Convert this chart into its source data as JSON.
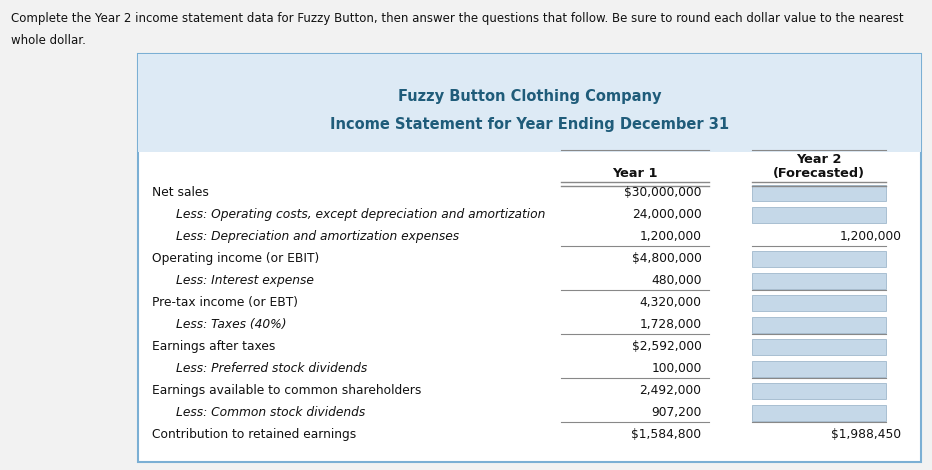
{
  "title_line1": "Fuzzy Button Clothing Company",
  "title_line2": "Income Statement for Year Ending December 31",
  "header_bg": "#ddeaf5",
  "table_border_color": "#7bafd4",
  "instruction_line1": "Complete the Year 2 income statement data for Fuzzy Button, then answer the questions that follow. Be sure to round each dollar value to the nearest",
  "instruction_line2": "whole dollar.",
  "rows": [
    {
      "label": "Net sales",
      "indent": false,
      "year1": "$30,000,000",
      "year2": "",
      "separator_below": false
    },
    {
      "label": "Less: Operating costs, except depreciation and amortization",
      "indent": true,
      "year1": "24,000,000",
      "year2": "",
      "separator_below": false
    },
    {
      "label": "Less: Depreciation and amortization expenses",
      "indent": true,
      "year1": "1,200,000",
      "year2": "1,200,000",
      "separator_below": true
    },
    {
      "label": "Operating income (or EBIT)",
      "indent": false,
      "year1": "$4,800,000",
      "year2": "",
      "separator_below": false
    },
    {
      "label": "Less: Interest expense",
      "indent": true,
      "year1": "480,000",
      "year2": "",
      "separator_below": true
    },
    {
      "label": "Pre-tax income (or EBT)",
      "indent": false,
      "year1": "4,320,000",
      "year2": "",
      "separator_below": false
    },
    {
      "label": "Less: Taxes (40%)",
      "indent": true,
      "year1": "1,728,000",
      "year2": "",
      "separator_below": true
    },
    {
      "label": "Earnings after taxes",
      "indent": false,
      "year1": "$2,592,000",
      "year2": "",
      "separator_below": false
    },
    {
      "label": "Less: Preferred stock dividends",
      "indent": true,
      "year1": "100,000",
      "year2": "",
      "separator_below": true
    },
    {
      "label": "Earnings available to common shareholders",
      "indent": false,
      "year1": "2,492,000",
      "year2": "",
      "separator_below": false
    },
    {
      "label": "Less: Common stock dividends",
      "indent": true,
      "year1": "907,200",
      "year2": "",
      "separator_below": true
    },
    {
      "label": "Contribution to retained earnings",
      "indent": false,
      "year1": "$1,584,800",
      "year2": "$1,988,450",
      "separator_below": false
    }
  ],
  "gray_box_color": "#c5d8e8",
  "gray_box_border": "#a0b8cc",
  "title_color": "#1f5c7a",
  "text_color": "#111111",
  "bg_color": "#ffffff",
  "page_bg": "#f2f2f2",
  "sep_color": "#888888",
  "font_size": 8.8,
  "title_font_size": 10.5
}
